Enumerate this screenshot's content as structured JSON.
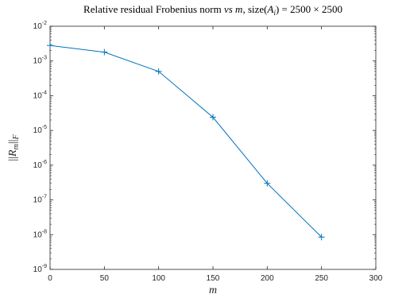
{
  "chart_data": {
    "type": "line",
    "title": "Relative residual Frobenius norm vs m, size(A_i) = 2500 × 2500",
    "title_parts": {
      "prefix": "Relative residual Frobenius norm ",
      "vs": "vs",
      "m": "m",
      "size_prefix": ", size(",
      "A": "A",
      "i": "i",
      "size_suffix": ") = 2500 × 2500"
    },
    "xlabel": "m",
    "ylabel": "||R_m||_F",
    "ylabel_parts": {
      "bars_left": "||",
      "R": "R",
      "m": "m",
      "bars_right": "||",
      "F": "F"
    },
    "x": [
      0,
      50,
      100,
      150,
      200,
      250
    ],
    "series": [
      {
        "values": [
          0.0028,
          0.0018,
          0.0005,
          2.4e-05,
          3e-07,
          8.5e-09
        ],
        "color": "#0072BD",
        "marker": "plus"
      }
    ],
    "xlim": [
      0,
      300
    ],
    "ylim": [
      1e-09,
      0.01
    ],
    "yscale": "log",
    "xticks": [
      "0",
      "50",
      "100",
      "150",
      "200",
      "250",
      "300"
    ],
    "yticks": [
      {
        "base": "10",
        "exp": "-9"
      },
      {
        "base": "10",
        "exp": "-8"
      },
      {
        "base": "10",
        "exp": "-7"
      },
      {
        "base": "10",
        "exp": "-6"
      },
      {
        "base": "10",
        "exp": "-5"
      },
      {
        "base": "10",
        "exp": "-4"
      },
      {
        "base": "10",
        "exp": "-3"
      },
      {
        "base": "10",
        "exp": "-2"
      }
    ],
    "grid": false,
    "legend": "none"
  }
}
